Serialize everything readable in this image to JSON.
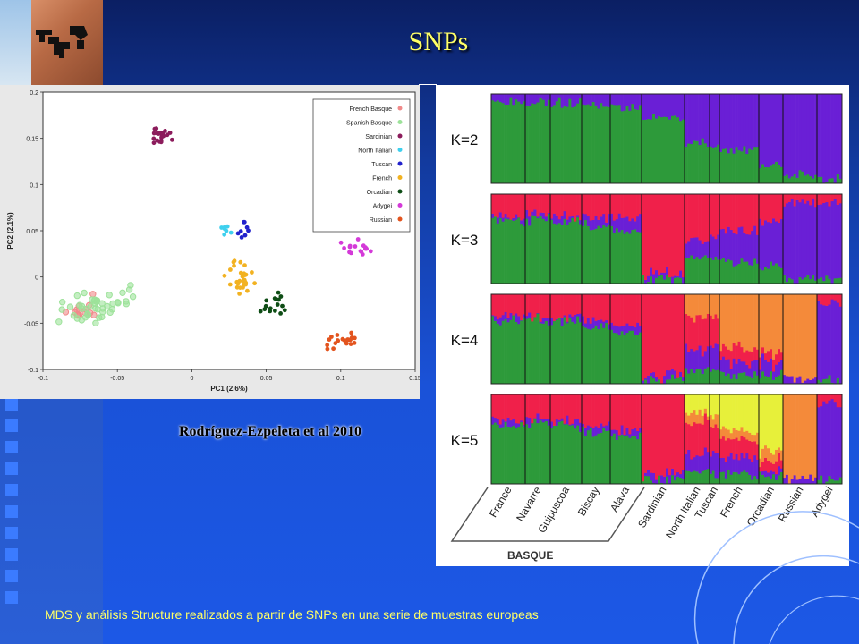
{
  "slide": {
    "title": "SNPs",
    "citation": "Rodríguez-Ezpeleta et al 2010",
    "caption": "MDS y análisis Structure realizados a partir de SNPs en una serie de muestras europeas"
  },
  "chart_data": [
    {
      "type": "scatter",
      "xlabel": "PC1 (2.6%)",
      "ylabel": "PC2 (2.1%)",
      "xlim": [
        -0.1,
        0.15
      ],
      "ylim": [
        -0.1,
        0.2
      ],
      "xticks": [
        "-0.1",
        "-0.05",
        "0",
        "0.05",
        "0.1",
        "0.15"
      ],
      "yticks": [
        "-0.1",
        "-0.05",
        "0",
        "0.05",
        "0.1",
        "0.15",
        "0.2"
      ],
      "legend_position": "top-right",
      "series": [
        {
          "name": "French Basque",
          "color": "#f08a8a",
          "cx": -0.072,
          "cy": -0.035,
          "sx": 0.01,
          "sy": 0.008,
          "n": 14
        },
        {
          "name": "Spanish Basque",
          "color": "#9de29a",
          "cx": -0.06,
          "cy": -0.03,
          "sx": 0.018,
          "sy": 0.011,
          "n": 45
        },
        {
          "name": "Sardinian",
          "color": "#8c1c5c",
          "cx": -0.02,
          "cy": 0.155,
          "sx": 0.004,
          "sy": 0.008,
          "n": 22
        },
        {
          "name": "North Italian",
          "color": "#3fd0ee",
          "cx": 0.023,
          "cy": 0.05,
          "sx": 0.004,
          "sy": 0.004,
          "n": 8
        },
        {
          "name": "Tuscan",
          "color": "#2222cc",
          "cx": 0.035,
          "cy": 0.052,
          "sx": 0.003,
          "sy": 0.006,
          "n": 8
        },
        {
          "name": "French",
          "color": "#f2b221",
          "cx": 0.033,
          "cy": 0.0,
          "sx": 0.008,
          "sy": 0.012,
          "n": 30
        },
        {
          "name": "Orcadian",
          "color": "#0e4d15",
          "cx": 0.055,
          "cy": -0.03,
          "sx": 0.006,
          "sy": 0.008,
          "n": 16
        },
        {
          "name": "Adygei",
          "color": "#d43ad8",
          "cx": 0.112,
          "cy": 0.028,
          "sx": 0.007,
          "sy": 0.009,
          "n": 16
        },
        {
          "name": "Russian",
          "color": "#e3541e",
          "cx": 0.102,
          "cy": -0.07,
          "sx": 0.007,
          "sy": 0.006,
          "n": 22
        }
      ]
    },
    {
      "type": "bar",
      "subtype": "stacked-structure",
      "rows": [
        "K=2",
        "K=3",
        "K=4",
        "K=5"
      ],
      "populations": [
        "France",
        "Navarre",
        "Guipuscoa",
        "Biscay",
        "Alava",
        "Sardinian",
        "North Italian",
        "Tuscan",
        "French",
        "Orcadian",
        "Russian",
        "Adygei"
      ],
      "group_label": "BASQUE",
      "colors": {
        "green": "#2d9a3a",
        "purple": "#6a1fd6",
        "red": "#f0204a",
        "orange": "#f48a3a",
        "yellow": "#e7f03a"
      },
      "proportions": {
        "K=2": [
          [
            0.9,
            0.1
          ],
          [
            0.9,
            0.1
          ],
          [
            0.9,
            0.1
          ],
          [
            0.88,
            0.12
          ],
          [
            0.85,
            0.15
          ],
          [
            0.72,
            0.28
          ],
          [
            0.45,
            0.55
          ],
          [
            0.42,
            0.58
          ],
          [
            0.38,
            0.62
          ],
          [
            0.22,
            0.78
          ],
          [
            0.1,
            0.9
          ],
          [
            0.05,
            0.95
          ]
        ],
        "K=3": [
          [
            0.7,
            0.05,
            0.25
          ],
          [
            0.72,
            0.05,
            0.23
          ],
          [
            0.7,
            0.05,
            0.25
          ],
          [
            0.65,
            0.1,
            0.25
          ],
          [
            0.6,
            0.15,
            0.25
          ],
          [
            0.05,
            0.05,
            0.9
          ],
          [
            0.3,
            0.2,
            0.5
          ],
          [
            0.25,
            0.25,
            0.5
          ],
          [
            0.25,
            0.35,
            0.4
          ],
          [
            0.2,
            0.5,
            0.3
          ],
          [
            0.05,
            0.85,
            0.1
          ],
          [
            0.05,
            0.85,
            0.1
          ]
        ],
        "K=4": [
          [
            0.7,
            0.05,
            0.25,
            0.0
          ],
          [
            0.7,
            0.05,
            0.25,
            0.0
          ],
          [
            0.7,
            0.05,
            0.25,
            0.0
          ],
          [
            0.62,
            0.08,
            0.3,
            0.0
          ],
          [
            0.55,
            0.1,
            0.35,
            0.0
          ],
          [
            0.05,
            0.05,
            0.9,
            0.0
          ],
          [
            0.15,
            0.25,
            0.35,
            0.25
          ],
          [
            0.15,
            0.3,
            0.3,
            0.25
          ],
          [
            0.1,
            0.15,
            0.15,
            0.6
          ],
          [
            0.1,
            0.15,
            0.1,
            0.65
          ],
          [
            0.0,
            0.05,
            0.0,
            0.95
          ],
          [
            0.05,
            0.85,
            0.1,
            0.0
          ]
        ],
        "K=5": [
          [
            0.65,
            0.05,
            0.3,
            0.0,
            0.0
          ],
          [
            0.68,
            0.05,
            0.27,
            0.0,
            0.0
          ],
          [
            0.65,
            0.05,
            0.3,
            0.0,
            0.0
          ],
          [
            0.6,
            0.05,
            0.35,
            0.0,
            0.0
          ],
          [
            0.55,
            0.05,
            0.4,
            0.0,
            0.0
          ],
          [
            0.05,
            0.05,
            0.9,
            0.0,
            0.0
          ],
          [
            0.15,
            0.2,
            0.35,
            0.1,
            0.2
          ],
          [
            0.1,
            0.25,
            0.3,
            0.1,
            0.25
          ],
          [
            0.1,
            0.2,
            0.2,
            0.1,
            0.4
          ],
          [
            0.1,
            0.05,
            0.1,
            0.1,
            0.65
          ],
          [
            0.0,
            0.05,
            0.0,
            0.95,
            0.0
          ],
          [
            0.05,
            0.85,
            0.1,
            0.0,
            0.0
          ]
        ]
      }
    }
  ]
}
